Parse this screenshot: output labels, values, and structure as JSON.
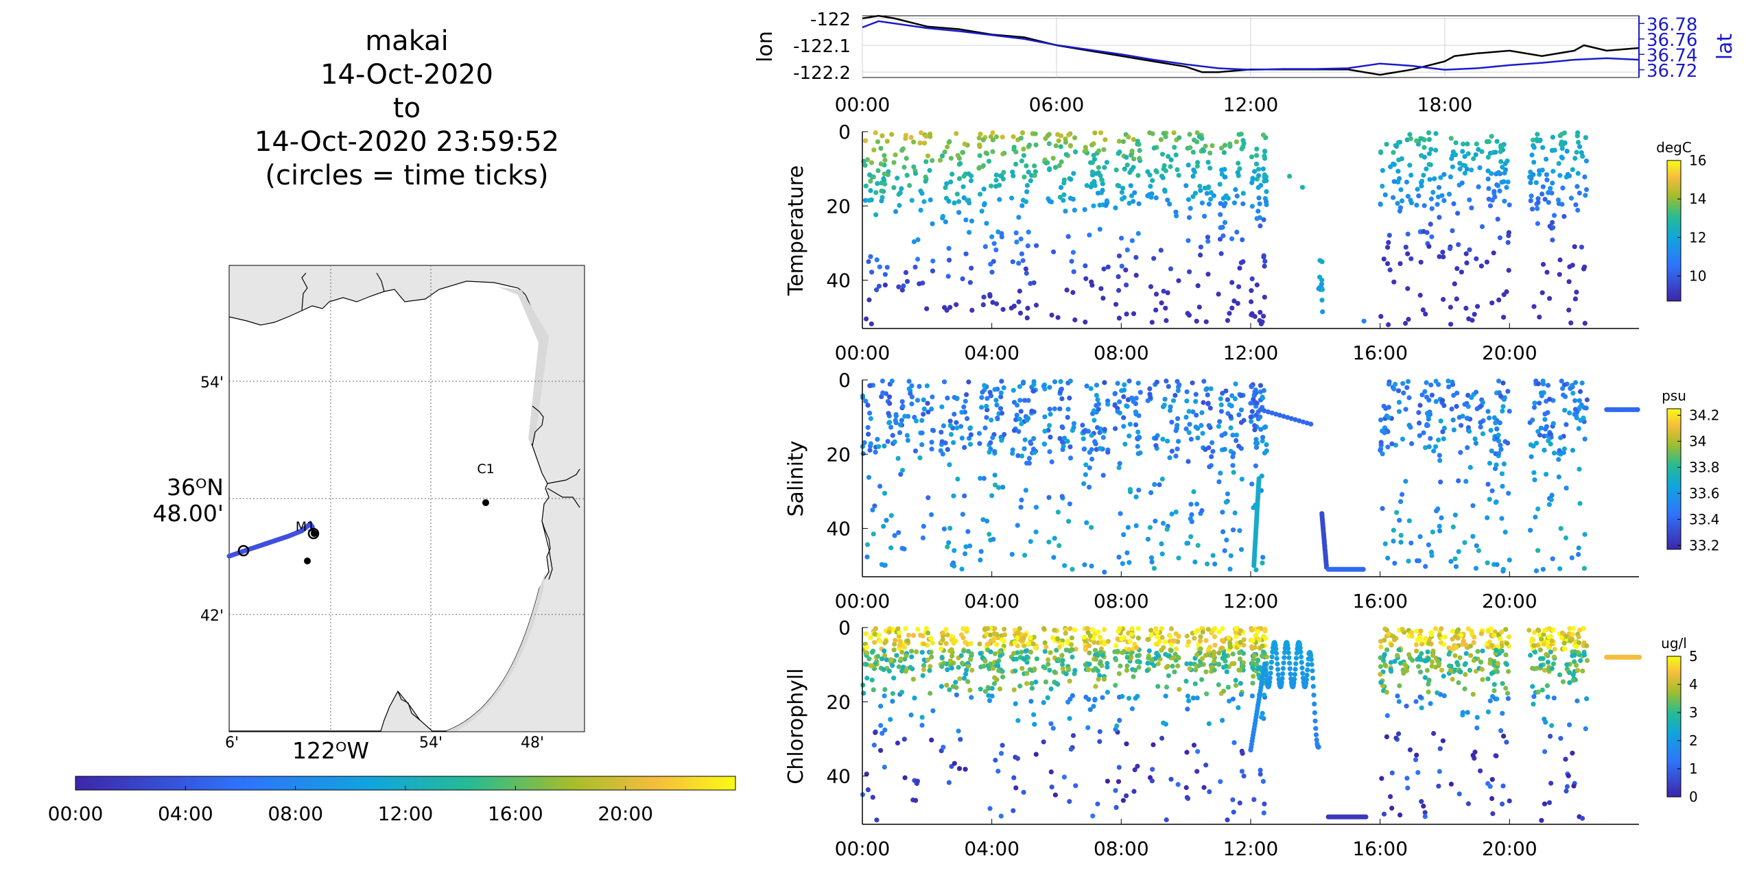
{
  "title_lines": [
    "makai",
    "14-Oct-2020",
    "to",
    "14-Oct-2020 23:59:52",
    "(circles = time ticks)"
  ],
  "map": {
    "lat_labels": [
      "54'",
      "42'"
    ],
    "lat_center_label": [
      "36ᴼN",
      "48.00'"
    ],
    "lon_labels": [
      "6'",
      "54'",
      "48'"
    ],
    "lon_center_label": "122ᴼW",
    "stations": [
      {
        "name": "C1",
        "labeled": true
      },
      {
        "name": "M1",
        "labeled": true
      },
      {
        "name": "",
        "labeled": false
      }
    ],
    "land_color": "#e6e6e6",
    "track_color": "#3f4fe0"
  },
  "time_colorbar": {
    "tick_labels": [
      "00:00",
      "04:00",
      "08:00",
      "12:00",
      "16:00",
      "20:00"
    ],
    "colormap": "parula"
  },
  "chart_data": [
    {
      "type": "line",
      "name": "position",
      "x_range_hours": [
        0,
        24
      ],
      "x_tick_labels": [
        "00:00",
        "06:00",
        "12:00",
        "18:00"
      ],
      "ylabel": "lon",
      "y2label": "lat",
      "ylim": [
        -122.22,
        -121.99
      ],
      "y_ticks": [
        "-122",
        "-122.1",
        "-122.2"
      ],
      "y2lim": [
        36.71,
        36.79
      ],
      "y2_ticks": [
        "36.78",
        "36.76",
        "36.74",
        "36.72"
      ],
      "grid": true,
      "series": [
        {
          "axis": "left",
          "color": "#000000",
          "x": [
            0,
            0.5,
            1,
            2,
            3,
            4,
            5,
            6,
            7,
            8,
            9,
            10,
            10.5,
            11,
            12,
            13,
            14,
            15,
            16,
            17,
            18,
            18.3,
            19,
            20,
            21,
            22,
            22.3,
            23,
            24
          ],
          "y": [
            -122.0,
            -121.99,
            -122.0,
            -122.03,
            -122.04,
            -122.06,
            -122.07,
            -122.1,
            -122.12,
            -122.14,
            -122.16,
            -122.18,
            -122.2,
            -122.2,
            -122.19,
            -122.19,
            -122.19,
            -122.19,
            -122.21,
            -122.19,
            -122.16,
            -122.14,
            -122.13,
            -122.12,
            -122.14,
            -122.12,
            -122.1,
            -122.12,
            -122.11
          ]
        },
        {
          "axis": "right",
          "color": "#1a1acc",
          "x": [
            0,
            0.5,
            1,
            2,
            3,
            4,
            5,
            6,
            7,
            8,
            9,
            10,
            11,
            12,
            13,
            14,
            15,
            16,
            17,
            18,
            19,
            20,
            21,
            22,
            23,
            24
          ],
          "y": [
            36.775,
            36.783,
            36.78,
            36.774,
            36.77,
            36.765,
            36.76,
            36.752,
            36.746,
            36.74,
            36.733,
            36.727,
            36.722,
            36.72,
            36.721,
            36.721,
            36.722,
            36.728,
            36.725,
            36.72,
            36.722,
            36.726,
            36.729,
            36.733,
            36.735,
            36.733
          ]
        }
      ]
    },
    {
      "type": "scatter",
      "name": "temperature",
      "ylabel": "Temperature",
      "y_reversed": true,
      "ylim": [
        0,
        53
      ],
      "y_ticks": [
        "0",
        "20",
        "40"
      ],
      "x_range_hours": [
        0,
        24
      ],
      "x_tick_labels": [
        "00:00",
        "04:00",
        "08:00",
        "12:00",
        "16:00",
        "20:00"
      ],
      "colorbar": {
        "unit": "degC",
        "clim": [
          8.7,
          16
        ],
        "tick_labels": [
          "16",
          "14",
          "12",
          "10"
        ]
      },
      "point_count": 900
    },
    {
      "type": "scatter",
      "name": "salinity",
      "ylabel": "Salinity",
      "y_reversed": true,
      "ylim": [
        0,
        53
      ],
      "y_ticks": [
        "0",
        "20",
        "40"
      ],
      "x_range_hours": [
        0,
        24
      ],
      "x_tick_labels": [
        "00:00",
        "04:00",
        "08:00",
        "12:00",
        "16:00",
        "20:00"
      ],
      "colorbar": {
        "unit": "psu",
        "clim": [
          33.17,
          34.25
        ],
        "tick_labels": [
          "34.2",
          "34",
          "33.8",
          "33.6",
          "33.4",
          "33.2"
        ]
      },
      "point_count": 900
    },
    {
      "type": "scatter",
      "name": "chlorophyll",
      "ylabel": "Chlorophyll",
      "y_reversed": true,
      "ylim": [
        0,
        53
      ],
      "y_ticks": [
        "0",
        "20",
        "40"
      ],
      "x_range_hours": [
        0,
        24
      ],
      "x_tick_labels": [
        "00:00",
        "04:00",
        "08:00",
        "12:00",
        "16:00",
        "20:00"
      ],
      "colorbar": {
        "unit": "ug/l",
        "clim": [
          0,
          5
        ],
        "tick_labels": [
          "5",
          "4",
          "3",
          "2",
          "1",
          "0"
        ]
      },
      "point_count": 1400
    }
  ]
}
